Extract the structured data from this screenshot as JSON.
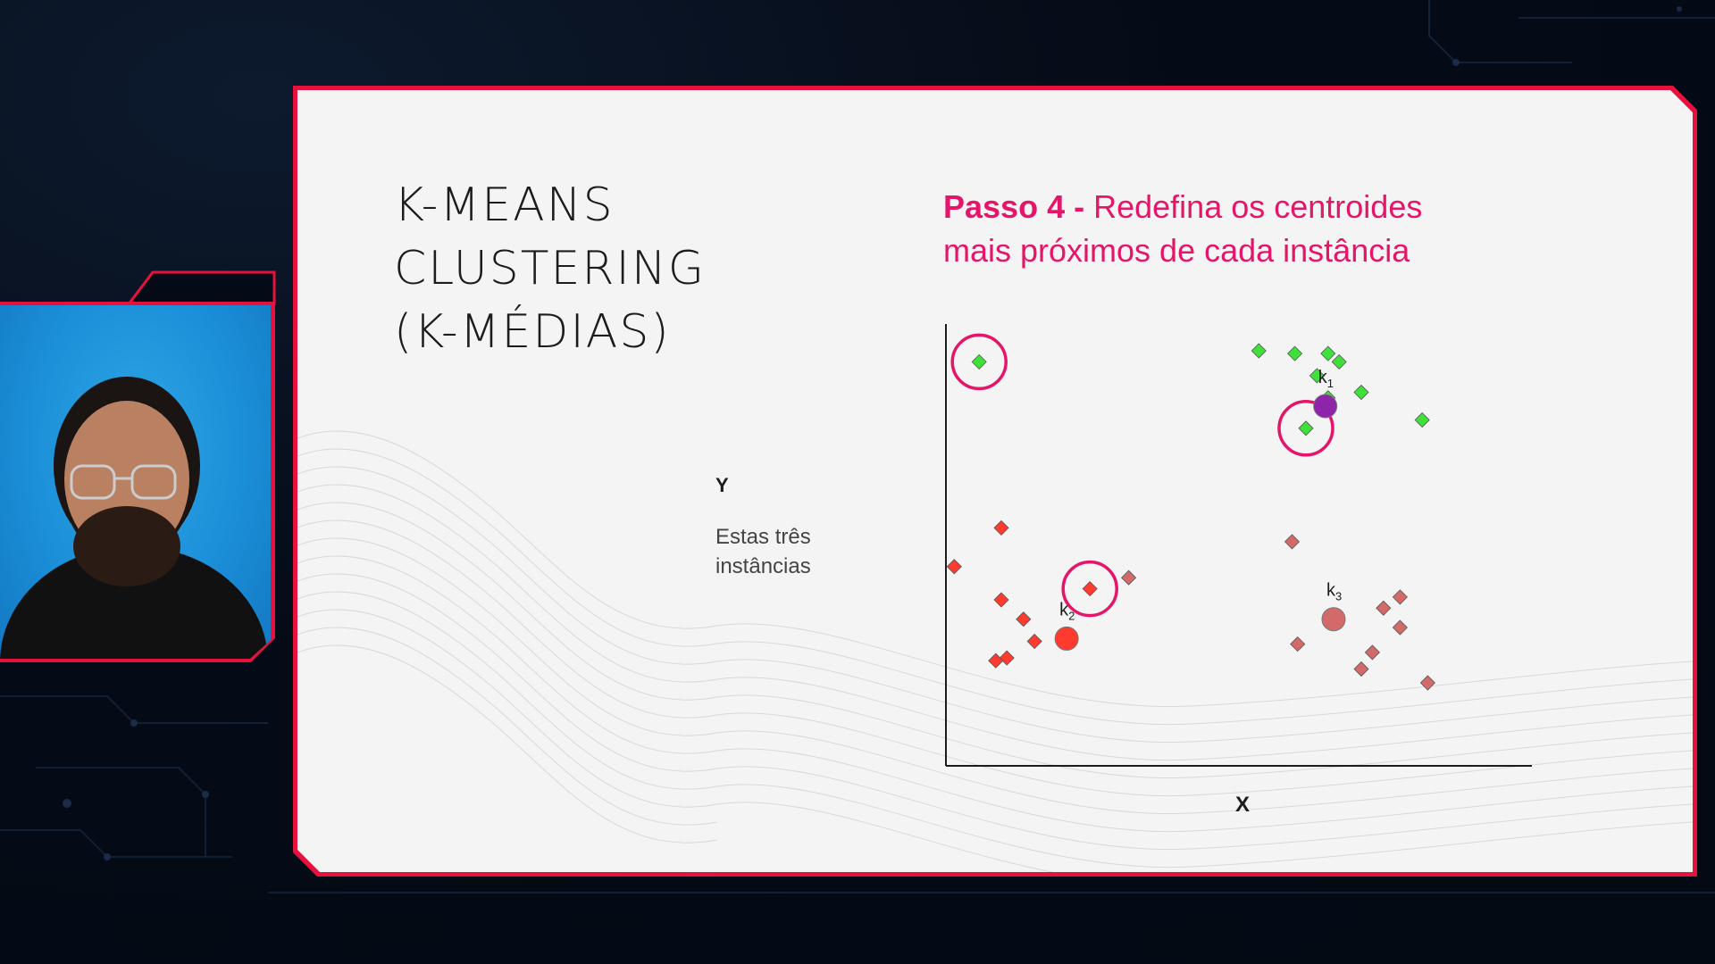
{
  "slide": {
    "title_lines": [
      "K-MEANS",
      "CLUSTERING",
      "(K-MÉDIAS)"
    ],
    "step_label": "Passo 4 -",
    "step_text_line1": "Redefina os centroides",
    "step_text_line2": "mais próximos de cada instância",
    "y_axis_label": "Y",
    "y_caption_line1": "Estas três",
    "y_caption_line2": "instâncias",
    "x_axis_label": "X"
  },
  "chart_data": {
    "type": "scatter",
    "xlabel": "X",
    "ylabel": "Y",
    "centroids": [
      {
        "label": "k",
        "subscript": "1",
        "color": "#8e24aa",
        "x": 685,
        "y": 650
      },
      {
        "label": "k",
        "subscript": "2",
        "color": "#ff3b2f",
        "x": 218,
        "y": 230
      },
      {
        "label": "k",
        "subscript": "3",
        "color": "#d16a68",
        "x": 700,
        "y": 265
      }
    ],
    "series": [
      {
        "cluster": "k1",
        "color": "#3fe03a",
        "points": [
          [
            60,
            730
          ],
          [
            565,
            750
          ],
          [
            630,
            745
          ],
          [
            690,
            745
          ],
          [
            710,
            730
          ],
          [
            670,
            705
          ],
          [
            750,
            675
          ],
          [
            690,
            665
          ],
          [
            860,
            625
          ],
          [
            650,
            610
          ]
        ]
      },
      {
        "cluster": "k2",
        "color": "#ff3b2f",
        "points": [
          [
            100,
            430
          ],
          [
            15,
            360
          ],
          [
            100,
            300
          ],
          [
            140,
            265
          ],
          [
            160,
            225
          ],
          [
            110,
            195
          ],
          [
            90,
            190
          ],
          [
            260,
            320
          ]
        ]
      },
      {
        "cluster": "k3",
        "color": "#d16a68",
        "points": [
          [
            625,
            405
          ],
          [
            330,
            340
          ],
          [
            820,
            305
          ],
          [
            790,
            285
          ],
          [
            820,
            250
          ],
          [
            635,
            220
          ],
          [
            770,
            205
          ],
          [
            750,
            175
          ],
          [
            870,
            150
          ]
        ]
      }
    ],
    "highlighted": [
      [
        60,
        730
      ],
      [
        650,
        610
      ],
      [
        260,
        320
      ]
    ],
    "highlight_color": "#e5166a"
  }
}
